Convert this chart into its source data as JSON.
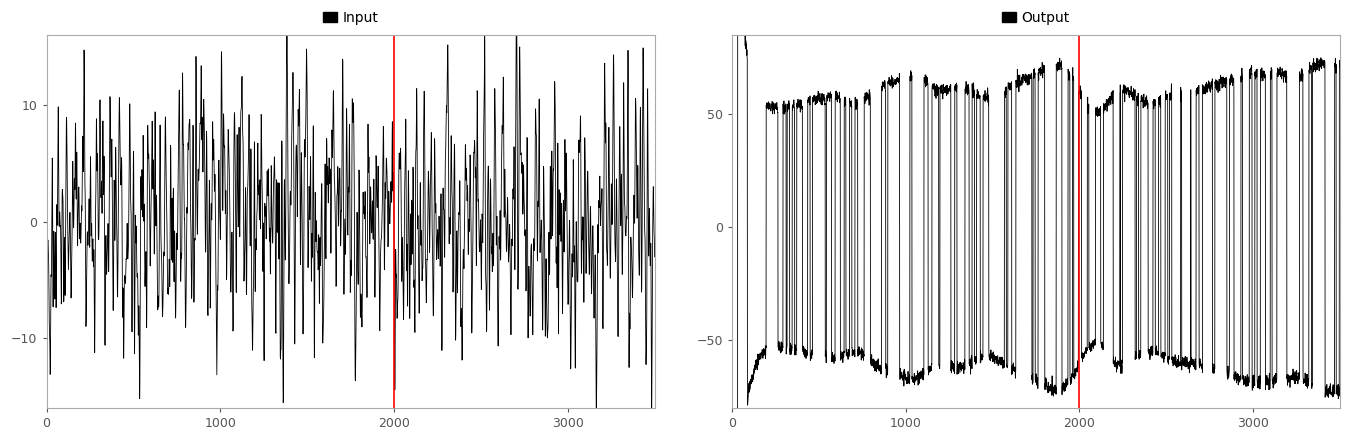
{
  "n_total": 3500,
  "train_cutoff": 1998,
  "input_ylim": [
    -16,
    16
  ],
  "output_ylim": [
    -80,
    85
  ],
  "input_yticks": [
    -10,
    0,
    10
  ],
  "output_yticks": [
    -50,
    0,
    50
  ],
  "xticks": [
    0,
    1000,
    2000,
    3000
  ],
  "red_line_color": "red",
  "line_color": "black",
  "line_width": 0.6,
  "legend_label_input": "Input",
  "legend_label_output": "Output",
  "background_color": "#ffffff",
  "seed": 42
}
